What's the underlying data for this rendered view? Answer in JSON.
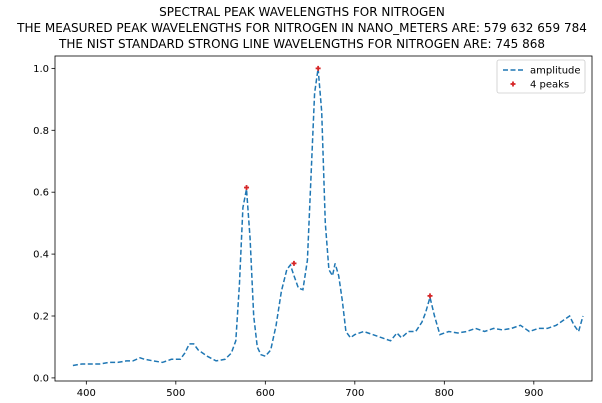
{
  "chart_data": {
    "type": "line",
    "title_lines": [
      "SPECTRAL PEAK WAVELENGTHS FOR NITROGEN",
      "THE MEASURED PEAK WAVELENGTHS FOR NITROGEN IN NANO_METERS ARE: 579 632 659 784",
      "THE NIST STANDARD STRONG LINE WAVELENGTHS FOR NITROGEN ARE: 745 868"
    ],
    "xlabel": "",
    "ylabel": "",
    "xlim": [
      365,
      965
    ],
    "ylim": [
      -0.01,
      1.04
    ],
    "x_ticks": [
      400,
      500,
      600,
      700,
      800,
      900
    ],
    "y_ticks": [
      0.0,
      0.2,
      0.4,
      0.6,
      0.8,
      1.0
    ],
    "y_tick_labels": [
      "0.0",
      "0.2",
      "0.4",
      "0.6",
      "0.8",
      "1.0"
    ],
    "grid": false,
    "legend_position": "top-right",
    "series": [
      {
        "name": "amplitude",
        "style": "dashed",
        "color": "#1f77b4",
        "x": [
          385,
          395,
          405,
          415,
          425,
          435,
          445,
          452,
          460,
          465,
          475,
          485,
          495,
          505,
          510,
          515,
          520,
          525,
          535,
          545,
          555,
          562,
          567,
          571,
          575,
          579,
          583,
          587,
          591,
          595,
          600,
          606,
          612,
          618,
          624,
          628,
          632,
          637,
          642,
          647,
          651,
          655,
          659,
          663,
          667,
          671,
          675,
          678,
          682,
          686,
          690,
          695,
          700,
          710,
          720,
          730,
          740,
          747,
          752,
          760,
          768,
          775,
          779,
          784,
          789,
          795,
          805,
          815,
          825,
          835,
          845,
          855,
          865,
          875,
          885,
          895,
          905,
          915,
          925,
          935,
          940,
          945,
          950,
          955
        ],
        "y": [
          0.04,
          0.045,
          0.045,
          0.045,
          0.05,
          0.05,
          0.055,
          0.055,
          0.065,
          0.06,
          0.055,
          0.05,
          0.06,
          0.06,
          0.08,
          0.11,
          0.11,
          0.09,
          0.07,
          0.055,
          0.06,
          0.08,
          0.12,
          0.3,
          0.55,
          0.61,
          0.45,
          0.2,
          0.1,
          0.075,
          0.07,
          0.09,
          0.17,
          0.28,
          0.35,
          0.365,
          0.33,
          0.29,
          0.285,
          0.38,
          0.65,
          0.92,
          1.0,
          0.86,
          0.5,
          0.35,
          0.33,
          0.37,
          0.33,
          0.25,
          0.15,
          0.13,
          0.14,
          0.15,
          0.14,
          0.13,
          0.12,
          0.145,
          0.13,
          0.15,
          0.15,
          0.18,
          0.21,
          0.26,
          0.2,
          0.14,
          0.15,
          0.145,
          0.15,
          0.16,
          0.15,
          0.16,
          0.155,
          0.16,
          0.17,
          0.15,
          0.16,
          0.16,
          0.17,
          0.19,
          0.2,
          0.17,
          0.15,
          0.2
        ]
      },
      {
        "name": "4 peaks",
        "style": "markers",
        "marker": "plus",
        "color": "#d62728",
        "x": [
          579,
          632,
          659,
          784
        ],
        "y": [
          0.615,
          0.37,
          1.0,
          0.265
        ]
      }
    ]
  }
}
